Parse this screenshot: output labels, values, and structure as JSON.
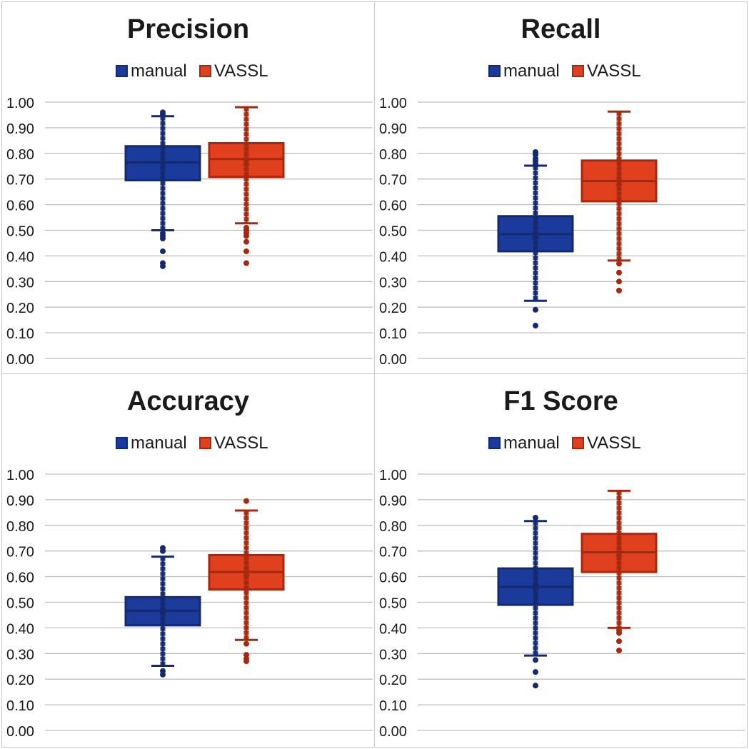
{
  "colors": {
    "manual_fill": "#1a3a9c",
    "manual_stroke": "#14296e",
    "vassl_fill": "#e0401e",
    "vassl_stroke": "#a5290f",
    "grid": "#bfbfbf",
    "text": "#1a1a1a"
  },
  "legend": {
    "manual": "manual",
    "vassl": "VASSL"
  },
  "chart_data": [
    {
      "type": "box",
      "title": "Precision",
      "ylim": [
        0,
        1
      ],
      "yticks": [
        "0.00",
        "0.10",
        "0.20",
        "0.30",
        "0.40",
        "0.50",
        "0.60",
        "0.70",
        "0.80",
        "0.90",
        "1.00"
      ],
      "grid": true,
      "legend_position": "top",
      "series": [
        {
          "name": "manual",
          "min": 0.5,
          "q1": 0.695,
          "median": 0.765,
          "q3": 0.828,
          "max": 0.945,
          "mean": 0.755,
          "outliers": [
            0.36,
            0.372,
            0.418,
            0.468,
            0.478,
            0.488,
            0.952,
            0.96
          ]
        },
        {
          "name": "VASSL",
          "min": 0.527,
          "q1": 0.708,
          "median": 0.778,
          "q3": 0.84,
          "max": 0.98,
          "mean": 0.765,
          "outliers": [
            0.372,
            0.418,
            0.455,
            0.478,
            0.49,
            0.5,
            0.51
          ]
        }
      ]
    },
    {
      "type": "box",
      "title": "Recall",
      "ylim": [
        0,
        1
      ],
      "yticks": [
        "0.00",
        "0.10",
        "0.20",
        "0.30",
        "0.40",
        "0.50",
        "0.60",
        "0.70",
        "0.80",
        "0.90",
        "1.00"
      ],
      "grid": true,
      "legend_position": "top",
      "series": [
        {
          "name": "manual",
          "min": 0.225,
          "q1": 0.418,
          "median": 0.485,
          "q3": 0.555,
          "max": 0.752,
          "mean": 0.48,
          "outliers": [
            0.128,
            0.19,
            0.76,
            0.77,
            0.78,
            0.795,
            0.805
          ]
        },
        {
          "name": "VASSL",
          "min": 0.382,
          "q1": 0.613,
          "median": 0.692,
          "q3": 0.772,
          "max": 0.963,
          "mean": 0.685,
          "outliers": [
            0.265,
            0.3,
            0.335,
            0.37
          ]
        }
      ]
    },
    {
      "type": "box",
      "title": "Accuracy",
      "ylim": [
        0,
        1
      ],
      "yticks": [
        "0.00",
        "0.10",
        "0.20",
        "0.30",
        "0.40",
        "0.50",
        "0.60",
        "0.70",
        "0.80",
        "0.90",
        "1.00"
      ],
      "grid": true,
      "legend_position": "top",
      "series": [
        {
          "name": "manual",
          "min": 0.252,
          "q1": 0.41,
          "median": 0.467,
          "q3": 0.52,
          "max": 0.678,
          "mean": 0.467,
          "outliers": [
            0.218,
            0.232,
            0.7,
            0.712
          ]
        },
        {
          "name": "VASSL",
          "min": 0.353,
          "q1": 0.55,
          "median": 0.618,
          "q3": 0.684,
          "max": 0.858,
          "mean": 0.614,
          "outliers": [
            0.27,
            0.28,
            0.295,
            0.338,
            0.895
          ]
        }
      ]
    },
    {
      "type": "box",
      "title": "F1 Score",
      "ylim": [
        0,
        1
      ],
      "yticks": [
        "0.00",
        "0.10",
        "0.20",
        "0.30",
        "0.40",
        "0.50",
        "0.60",
        "0.70",
        "0.80",
        "0.90",
        "1.00"
      ],
      "grid": true,
      "legend_position": "top",
      "series": [
        {
          "name": "manual",
          "min": 0.292,
          "q1": 0.49,
          "median": 0.56,
          "q3": 0.632,
          "max": 0.817,
          "mean": 0.56,
          "outliers": [
            0.175,
            0.228,
            0.275,
            0.83
          ]
        },
        {
          "name": "VASSL",
          "min": 0.4,
          "q1": 0.618,
          "median": 0.695,
          "q3": 0.767,
          "max": 0.935,
          "mean": 0.69,
          "outliers": [
            0.312,
            0.348,
            0.38,
            0.39
          ]
        }
      ]
    }
  ]
}
